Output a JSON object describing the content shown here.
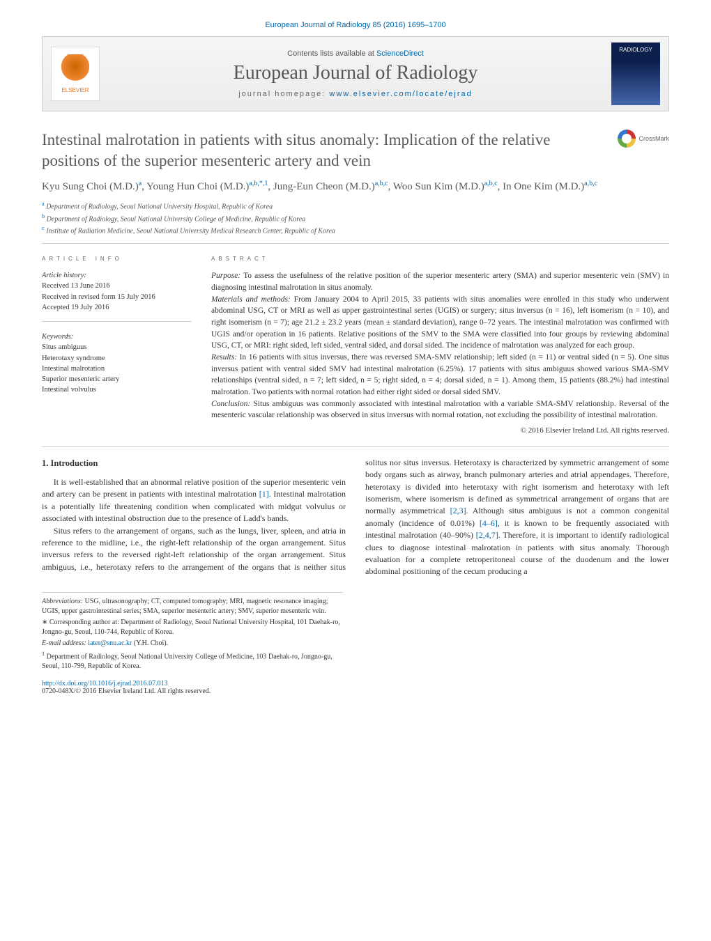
{
  "header": {
    "running_head": "European Journal of Radiology 85 (2016) 1695–1700",
    "contents_prefix": "Contents lists available at ",
    "contents_link": "ScienceDirect",
    "journal_title": "European Journal of Radiology",
    "homepage_prefix": "journal homepage: ",
    "homepage_url": "www.elsevier.com/locate/ejrad",
    "publisher_logo_text": "ELSEVIER",
    "cover_text": "RADIOLOGY"
  },
  "article": {
    "title": "Intestinal malrotation in patients with situs anomaly: Implication of the relative positions of the superior mesenteric artery and vein",
    "crossmark_label": "CrossMark",
    "authors_html": "Kyu Sung Choi (M.D.)<sup>a</sup>, Young Hun Choi (M.D.)<sup>a,b,*,1</sup>, Jung-Eun Cheon (M.D.)<sup>a,b,c</sup>, Woo Sun Kim (M.D.)<sup>a,b,c</sup>, In One Kim (M.D.)<sup>a,b,c</sup>",
    "affiliations": [
      {
        "sup": "a",
        "text": "Department of Radiology, Seoul National University Hospital, Republic of Korea"
      },
      {
        "sup": "b",
        "text": "Department of Radiology, Seoul National University College of Medicine, Republic of Korea"
      },
      {
        "sup": "c",
        "text": "Institute of Radiation Medicine, Seoul National University Medical Research Center, Republic of Korea"
      }
    ]
  },
  "info": {
    "heading": "article info",
    "history_label": "Article history:",
    "history": [
      "Received 13 June 2016",
      "Received in revised form 15 July 2016",
      "Accepted 19 July 2016"
    ],
    "keywords_label": "Keywords:",
    "keywords": [
      "Situs ambiguus",
      "Heterotaxy syndrome",
      "Intestinal malrotation",
      "Superior mesenteric artery",
      "Intestinal volvulus"
    ]
  },
  "abstract": {
    "heading": "abstract",
    "purpose_label": "Purpose:",
    "purpose": "To assess the usefulness of the relative position of the superior mesenteric artery (SMA) and superior mesenteric vein (SMV) in diagnosing intestinal malrotation in situs anomaly.",
    "methods_label": "Materials and methods:",
    "methods": "From January 2004 to April 2015, 33 patients with situs anomalies were enrolled in this study who underwent abdominal USG, CT or MRI as well as upper gastrointestinal series (UGIS) or surgery; situs inversus (n = 16), left isomerism (n = 10), and right isomerism (n = 7); age 21.2 ± 23.2 years (mean ± standard deviation), range 0–72 years. The intestinal malrotation was confirmed with UGIS and/or operation in 16 patients. Relative positions of the SMV to the SMA were classified into four groups by reviewing abdominal USG, CT, or MRI: right sided, left sided, ventral sided, and dorsal sided. The incidence of malrotation was analyzed for each group.",
    "results_label": "Results:",
    "results": "In 16 patients with situs inversus, there was reversed SMA-SMV relationship; left sided (n = 11) or ventral sided (n = 5). One situs inversus patient with ventral sided SMV had intestinal malrotation (6.25%). 17 patients with situs ambiguus showed various SMA-SMV relationships (ventral sided, n = 7; left sided, n = 5; right sided, n = 4; dorsal sided, n = 1). Among them, 15 patients (88.2%) had intestinal malrotation. Two patients with normal rotation had either right sided or dorsal sided SMV.",
    "conclusion_label": "Conclusion:",
    "conclusion": "Situs ambiguus was commonly associated with intestinal malrotation with a variable SMA-SMV relationship. Reversal of the mesenteric vascular relationship was observed in situs inversus with normal rotation, not excluding the possibility of intestinal malrotation.",
    "copyright": "© 2016 Elsevier Ireland Ltd. All rights reserved."
  },
  "body": {
    "intro_heading": "1. Introduction",
    "para1": "It is well-established that an abnormal relative position of the superior mesenteric vein and artery can be present in patients with intestinal malrotation [1]. Intestinal malrotation is a potentially life threatening condition when complicated with midgut volvulus or associated with intestinal obstruction due to the presence of Ladd's bands.",
    "para2": "Situs refers to the arrangement of organs, such as the lungs, liver, spleen, and atria in reference to the midline, i.e., the right-left relationship of the organ arrangement. Situs inversus refers to the reversed right-left relationship of the organ arrangement. Situs ambiguus, i.e., heterotaxy refers to the arrangement of the organs that is neither situs solitus nor situs inversus. Heterotaxy is characterized by symmetric arrangement of some body organs such as airway, branch pulmonary arteries and atrial appendages. Therefore, heterotaxy is divided into heterotaxy with right isomerism and heterotaxy with left isomerism, where isomerism is defined as symmetrical arrangement of organs that are normally asymmetrical [2,3]. Although situs ambiguus is not a common congenital anomaly (incidence of 0.01%) [4–6], it is known to be frequently associated with intestinal malrotation (40–90%) [2,4,7]. Therefore, it is important to identify radiological clues to diagnose intestinal malrotation in patients with situs anomaly. Thorough evaluation for a complete retroperitoneal course of the duodenum and the lower abdominal positioning of the cecum producing a"
  },
  "footnotes": {
    "abbrev_label": "Abbreviations:",
    "abbrev": "USG, ultrasonography; CT, computed tomography; MRI, magnetic resonance imaging; UGIS, upper gastrointestinal series; SMA, superior mesenteric artery; SMV, superior mesenteric vein.",
    "corr_label": "∗ Corresponding author at:",
    "corr": "Department of Radiology, Seoul National University Hospital, 101 Daehak-ro, Jongno-gu, Seoul, 110-744, Republic of Korea.",
    "email_label": "E-mail address:",
    "email": "iater@snu.ac.kr",
    "email_who": "(Y.H. Choi).",
    "note1_sup": "1",
    "note1": "Department of Radiology, Seoul National University College of Medicine, 103 Daehak-ro, Jongno-gu, Seoul, 110-799, Republic of Korea."
  },
  "doi": {
    "url": "http://dx.doi.org/10.1016/j.ejrad.2016.07.013",
    "issn_line": "0720-048X/© 2016 Elsevier Ireland Ltd. All rights reserved."
  },
  "colors": {
    "link": "#0066aa",
    "text": "#333333",
    "muted": "#5a5a5a",
    "rule": "#cccccc"
  }
}
